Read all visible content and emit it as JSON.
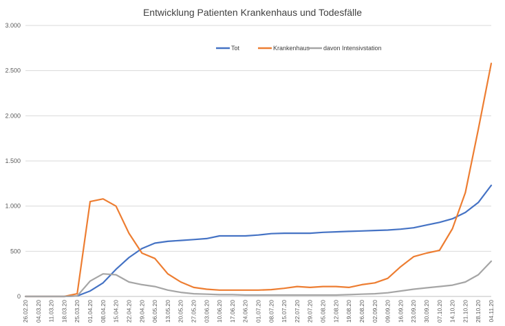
{
  "chart_data": {
    "type": "line",
    "title": "Entwicklung Patienten Krankenhaus und Todesfälle",
    "xlabel": "",
    "ylabel": "",
    "ylim": [
      0,
      3000
    ],
    "yticks": [
      0,
      500,
      1000,
      1500,
      2000,
      2500,
      3000
    ],
    "ytick_labels": [
      "0",
      "500",
      "1.000",
      "1.500",
      "2.000",
      "2.500",
      "3.000"
    ],
    "legend_position": "top-right",
    "grid": true,
    "x_tick_labels": [
      "26.02.20",
      "04.03.20",
      "11.03.20",
      "18.03.20",
      "25.03.20",
      "01.04.20",
      "08.04.20",
      "15.04.20",
      "22.04.20",
      "29.04.20",
      "06.05.20",
      "13.05.20",
      "20.05.20",
      "27.05.20",
      "03.06.20",
      "10.06.20",
      "17.06.20",
      "24.06.20",
      "01.07.20",
      "08.07.20",
      "15.07.20",
      "22.07.20",
      "29.07.20",
      "05.08.20",
      "12.08.20",
      "19.08.20",
      "26.08.20",
      "02.09.20",
      "09.09.20",
      "16.09.20",
      "23.09.20",
      "30.09.20",
      "07.10.20",
      "14.10.20",
      "21.10.20",
      "28.10.20",
      "04.11.20"
    ],
    "series": [
      {
        "name": "Tot",
        "color": "#4472C4",
        "values": [
          0,
          0,
          0,
          0,
          5,
          60,
          150,
          300,
          430,
          530,
          590,
          610,
          620,
          630,
          640,
          670,
          670,
          670,
          680,
          695,
          700,
          700,
          700,
          710,
          715,
          720,
          725,
          730,
          735,
          745,
          760,
          790,
          820,
          860,
          930,
          1040,
          1230
        ]
      },
      {
        "name": "Krankenhaus",
        "color": "#ED7D31",
        "values": [
          0,
          0,
          0,
          0,
          30,
          1050,
          1080,
          1000,
          700,
          480,
          420,
          250,
          160,
          100,
          80,
          70,
          70,
          70,
          70,
          75,
          90,
          110,
          100,
          110,
          110,
          100,
          130,
          150,
          200,
          330,
          440,
          480,
          510,
          750,
          1150,
          1850,
          2580
        ]
      },
      {
        "name": "davon Intensivstation",
        "color": "#A5A5A5",
        "values": [
          0,
          0,
          0,
          0,
          5,
          170,
          250,
          240,
          160,
          130,
          110,
          70,
          45,
          30,
          25,
          20,
          20,
          15,
          15,
          15,
          15,
          15,
          15,
          15,
          15,
          20,
          25,
          30,
          40,
          60,
          80,
          95,
          110,
          125,
          160,
          240,
          390
        ]
      }
    ]
  }
}
